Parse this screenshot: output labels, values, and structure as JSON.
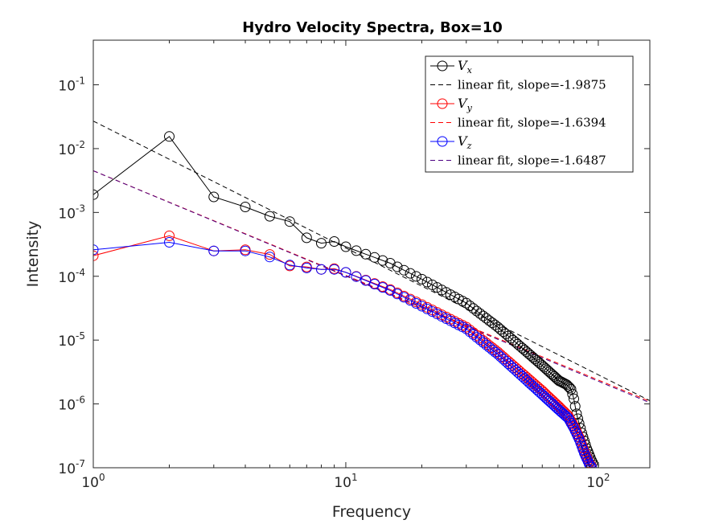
{
  "chart_data": {
    "type": "scatter",
    "title": "Hydro Velocity Spectra, Box=10",
    "xlabel": "Frequency",
    "ylabel": "Intensity",
    "xscale": "log",
    "yscale": "log",
    "xlim": [
      1,
      160
    ],
    "ylim": [
      1e-07,
      0.5
    ],
    "x_ticks": [
      {
        "value": 1,
        "base": "10",
        "exp": "0"
      },
      {
        "value": 10,
        "base": "10",
        "exp": "1"
      },
      {
        "value": 100,
        "base": "10",
        "exp": "2"
      }
    ],
    "y_ticks": [
      {
        "value": 1e-07,
        "base": "10",
        "exp": "-7"
      },
      {
        "value": 1e-06,
        "base": "10",
        "exp": "-6"
      },
      {
        "value": 1e-05,
        "base": "10",
        "exp": "-5"
      },
      {
        "value": 0.0001,
        "base": "10",
        "exp": "-4"
      },
      {
        "value": 0.001,
        "base": "10",
        "exp": "-3"
      },
      {
        "value": 0.01,
        "base": "10",
        "exp": "-2"
      },
      {
        "value": 0.1,
        "base": "10",
        "exp": "-1"
      }
    ],
    "grid": false,
    "legend_position": "top-right",
    "series": [
      {
        "name": "V",
        "subscript": "x",
        "color": "#000000",
        "head": [
          [
            1,
            0.0019
          ],
          [
            2,
            0.0155
          ],
          [
            3,
            0.00175
          ],
          [
            4,
            0.00122
          ],
          [
            5,
            0.00087
          ],
          [
            6,
            0.00072
          ],
          [
            7,
            0.0004
          ],
          [
            8,
            0.00033
          ],
          [
            9,
            0.00035
          ],
          [
            10,
            0.00029
          ]
        ],
        "tail_anchors": [
          [
            10,
            0.00029
          ],
          [
            15,
            0.00016
          ],
          [
            20,
            9e-05
          ],
          [
            30,
            3.8e-05
          ],
          [
            40,
            1.6e-05
          ],
          [
            50,
            7.5e-06
          ],
          [
            60,
            4e-06
          ],
          [
            70,
            2.3e-06
          ],
          [
            75,
            2e-06
          ],
          [
            78,
            1.7e-06
          ],
          [
            80,
            1.2e-06
          ],
          [
            82,
            7e-07
          ],
          [
            86,
            3.5e-07
          ],
          [
            90,
            2e-07
          ],
          [
            94,
            1.3e-07
          ],
          [
            96,
            1.1e-07
          ]
        ]
      },
      {
        "name": "V",
        "subscript": "y",
        "color": "#ff0000",
        "head": [
          [
            1,
            0.00021
          ],
          [
            2,
            0.00043
          ],
          [
            3,
            0.00025
          ],
          [
            4,
            0.00026
          ],
          [
            5,
            0.00022
          ],
          [
            6,
            0.000145
          ],
          [
            7,
            0.00014
          ],
          [
            8,
            0.000128
          ],
          [
            9,
            0.000132
          ],
          [
            10,
            0.000115
          ]
        ],
        "tail_anchors": [
          [
            10,
            0.000115
          ],
          [
            15,
            6.2e-05
          ],
          [
            20,
            3.6e-05
          ],
          [
            30,
            1.6e-05
          ],
          [
            40,
            6.5e-06
          ],
          [
            50,
            3e-06
          ],
          [
            60,
            1.6e-06
          ],
          [
            70,
            9e-07
          ],
          [
            76,
            6.5e-07
          ],
          [
            80,
            4.5e-07
          ],
          [
            84,
            3e-07
          ],
          [
            88,
            1.8e-07
          ],
          [
            92,
            1.2e-07
          ],
          [
            94,
            1.05e-07
          ]
        ]
      },
      {
        "name": "V",
        "subscript": "z",
        "color": "#0000ff",
        "head": [
          [
            1,
            0.00026
          ],
          [
            2,
            0.00034
          ],
          [
            3,
            0.00025
          ],
          [
            4,
            0.00025
          ],
          [
            5,
            0.0002
          ],
          [
            6,
            0.00015
          ],
          [
            7,
            0.000135
          ],
          [
            8,
            0.000128
          ],
          [
            9,
            0.000128
          ],
          [
            10,
            0.000115
          ]
        ],
        "tail_anchors": [
          [
            10,
            0.000115
          ],
          [
            15,
            6e-05
          ],
          [
            20,
            3.4e-05
          ],
          [
            30,
            1.5e-05
          ],
          [
            40,
            6e-06
          ],
          [
            50,
            2.7e-06
          ],
          [
            60,
            1.4e-06
          ],
          [
            70,
            8e-07
          ],
          [
            76,
            6e-07
          ],
          [
            80,
            4.2e-07
          ],
          [
            84,
            2.8e-07
          ],
          [
            88,
            1.7e-07
          ],
          [
            92,
            1.15e-07
          ],
          [
            94,
            1.02e-07
          ]
        ]
      }
    ],
    "fits": [
      {
        "label": "linear fit, slope=-1.9875",
        "slope": -1.9875,
        "intercept": 0.027,
        "color": "#000000"
      },
      {
        "label": "linear fit, slope=-1.6394",
        "slope": -1.6394,
        "intercept": 0.0045,
        "color": "#ff0000"
      },
      {
        "label": "linear fit, slope=-1.6487",
        "slope": -1.6487,
        "intercept": 0.0045,
        "color": "#4b0082"
      }
    ]
  }
}
